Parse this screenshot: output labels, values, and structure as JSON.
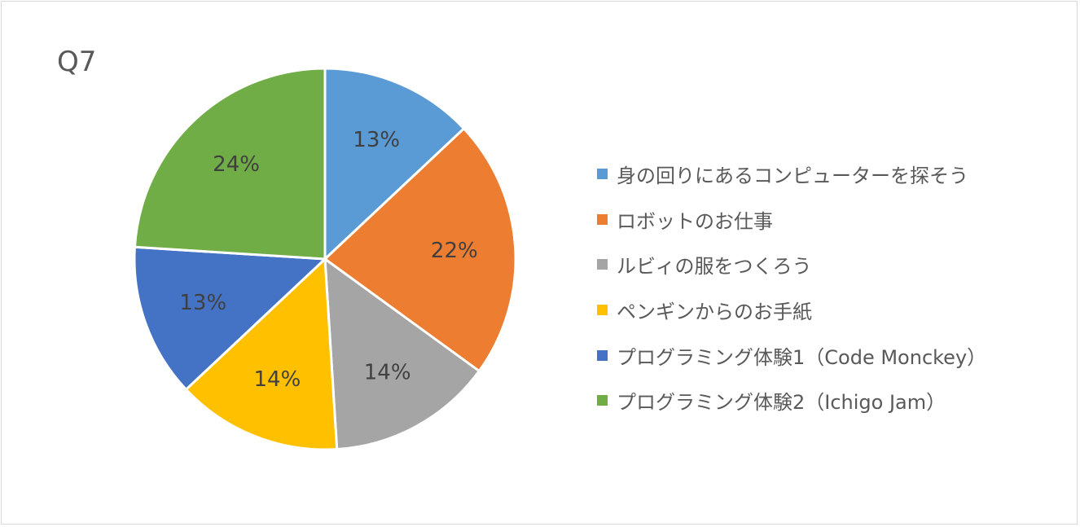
{
  "chart_data": {
    "type": "pie",
    "title": "Q7",
    "legend_position": "right",
    "series": [
      {
        "name": "身の回りにあるコンピューターを探そう",
        "value": 13,
        "label": "13%",
        "color": "#5b9bd5"
      },
      {
        "name": "ロボットのお仕事",
        "value": 22,
        "label": "22%",
        "color": "#ed7d31"
      },
      {
        "name": "ルビィの服をつくろう",
        "value": 14,
        "label": "14%",
        "color": "#a5a5a5"
      },
      {
        "name": "ペンギンからのお手紙",
        "value": 14,
        "label": "14%",
        "color": "#ffc000"
      },
      {
        "name": "プログラミング体験1（Code Monckey）",
        "value": 13,
        "label": "13%",
        "color": "#4472c4"
      },
      {
        "name": "プログラミング体験2（Ichigo Jam）",
        "value": 24,
        "label": "24%",
        "color": "#70ad47"
      }
    ]
  }
}
